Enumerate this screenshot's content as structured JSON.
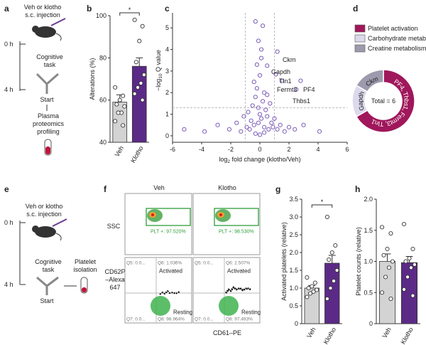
{
  "panels": {
    "a": {
      "label": "a",
      "injection": [
        "Veh or klotho",
        "s.c. injection"
      ],
      "t0": "0 h",
      "task": [
        "Cognitive",
        "task"
      ],
      "t4": "4 h",
      "start": "Start",
      "readout": [
        "Plasma",
        "proteomics",
        "profiling"
      ]
    },
    "e": {
      "label": "e",
      "injection": [
        "Veh or klotho",
        "s.c. injection"
      ],
      "t0": "0 h",
      "task": [
        "Cognitive",
        "task"
      ],
      "t4": "4 h",
      "start": "Start",
      "readout": [
        "Platelet",
        "isolation"
      ]
    },
    "f": {
      "label": "f",
      "columns": [
        "Veh",
        "Klotho"
      ],
      "ssc": "SSC",
      "cd62p": [
        "CD62P",
        "–Alexa",
        "647"
      ],
      "x_label": "CD61–PE",
      "gates": [
        "PLT +: 97.520%",
        "PLT +: 98.530%"
      ],
      "quadrants": [
        [
          "Q5: 0.0...",
          "Q6: 1.036%",
          "Q7: 0.0...",
          "Q8: 98.964%"
        ],
        [
          "Q5: 0.0...",
          "Q6: 2.507%",
          "Q7: 0.0...",
          "Q8: 97.493%"
        ]
      ],
      "activated": "Activated",
      "resting": "Resting"
    }
  },
  "chart_data": [
    {
      "type": "bar",
      "panel": "b",
      "ylabel": "Alterations (%)",
      "categories": [
        "Veh",
        "Klotho"
      ],
      "values": [
        59,
        76
      ],
      "errors": [
        3.5,
        4
      ],
      "colors": [
        "#d3d3d3",
        "#5b2a86"
      ],
      "points": [
        [
          66,
          62,
          60,
          58,
          57,
          54,
          54,
          50,
          48
        ],
        [
          98,
          95,
          88,
          78,
          72,
          68,
          66,
          63,
          60
        ]
      ],
      "ylim": [
        40,
        100
      ],
      "yticks": [
        40,
        60,
        80,
        100
      ],
      "significance": "*"
    },
    {
      "type": "scatter",
      "panel": "c",
      "ylabel": [
        "−log",
        "10",
        " Q value"
      ],
      "xlabel": [
        "log",
        "2",
        " fold change (klotho/Veh)"
      ],
      "color": "#7b5cb8",
      "x": [
        -5.2,
        -3.8,
        -2.9,
        -2.1,
        -1.6,
        -1.3,
        -1.1,
        -0.9,
        -0.8,
        -0.7,
        -0.6,
        -0.5,
        -0.4,
        -0.3,
        -0.2,
        -0.1,
        0,
        0.1,
        0.2,
        0.3,
        0.4,
        0.5,
        0.6,
        0.7,
        0.8,
        0.9,
        1.0,
        1.2,
        1.4,
        1.7,
        2.0,
        2.4,
        3.0,
        4.1,
        -0.3,
        0.2,
        -0.1,
        0.1,
        0.0,
        -0.4,
        0.3,
        0.5,
        -0.2,
        0.1,
        1.2,
        0.5,
        1.1,
        1.5,
        2.8,
        2.5,
        -0.3,
        0.3,
        0.0,
        -0.1
      ],
      "y": [
        0.3,
        0.2,
        0.5,
        0.3,
        0.6,
        0.2,
        0.9,
        0.4,
        1.1,
        0.3,
        0.7,
        1.4,
        0.5,
        1.8,
        2.2,
        0.6,
        1.0,
        0.8,
        1.6,
        0.4,
        1.2,
        0.9,
        0.3,
        1.5,
        0.6,
        0.4,
        0.8,
        0.3,
        0.5,
        0.2,
        0.4,
        0.3,
        0.5,
        0.2,
        5.3,
        5.1,
        4.4,
        4.0,
        2.8,
        2.5,
        2.0,
        1.9,
        3.3,
        3.6,
        3.9,
        3.25,
        2.85,
        2.55,
        2.55,
        2.15,
        0.1,
        0.15,
        0.05,
        1.3
      ],
      "annotations": [
        "Ckm",
        "Gapdh",
        "Tln1",
        "Fermt3",
        "PF4",
        "Thbs1"
      ],
      "thresholds": {
        "x": [
          -1,
          1
        ],
        "y": 1.3
      },
      "xlim": [
        -6,
        6
      ],
      "xticks": [
        -6,
        -4,
        -2,
        0,
        2,
        4,
        6
      ],
      "ylim": [
        -0.3,
        5.7
      ],
      "yticks": [
        0,
        1,
        2,
        3,
        4,
        5
      ]
    },
    {
      "type": "pie",
      "panel": "d",
      "categories": [
        "Platelet activation",
        "Carbohydrate metabolism",
        "Creatine metabolism"
      ],
      "colors": [
        "#a0175b",
        "#dcd9ec",
        "#9e9aad"
      ],
      "values": [
        4,
        1,
        1
      ],
      "segment_labels": [
        "PF4, Thbs1, Fermt3, Tln1",
        "Gapdh",
        "Ckm"
      ],
      "center_label": "Total = 6"
    },
    {
      "type": "bar",
      "panel": "g",
      "ylabel": "Activated platelets (relative)",
      "categories": [
        "Veh",
        "Klotho"
      ],
      "values": [
        1.0,
        1.7
      ],
      "errors": [
        0.07,
        0.22
      ],
      "colors": [
        "#d3d3d3",
        "#5b2a86"
      ],
      "points": [
        [
          1.3,
          1.15,
          1.05,
          1.0,
          0.95,
          0.9,
          0.85,
          0.75
        ],
        [
          3.0,
          2.2,
          2.0,
          1.8,
          1.5,
          1.2,
          1.0,
          0.7
        ]
      ],
      "ylim": [
        0,
        3.5
      ],
      "yticks": [
        0,
        0.5,
        {
          "value": 1,
          "label": "1.0"
        },
        1.5,
        {
          "value": 2,
          "label": "2.0"
        },
        2.5,
        {
          "value": 3,
          "label": "3.0"
        },
        3.5
      ],
      "significance": "*"
    },
    {
      "type": "bar",
      "panel": "h",
      "ylabel": "Platelet counts (relative)",
      "categories": [
        "Veh",
        "Klotho"
      ],
      "values": [
        1.0,
        0.98
      ],
      "errors": [
        0.12,
        0.1
      ],
      "colors": [
        "#d3d3d3",
        "#5b2a86"
      ],
      "points": [
        [
          1.55,
          1.45,
          1.2,
          1.1,
          1.0,
          0.9,
          0.75,
          0.5,
          0.4
        ],
        [
          1.6,
          1.2,
          1.05,
          1.0,
          0.95,
          0.9,
          0.75,
          0.55,
          0.45
        ]
      ],
      "ylim": [
        0,
        2
      ],
      "yticks": [
        0,
        0.5,
        {
          "value": 1,
          "label": "1.0"
        },
        1.5,
        {
          "value": 2,
          "label": "2.0"
        }
      ]
    }
  ]
}
